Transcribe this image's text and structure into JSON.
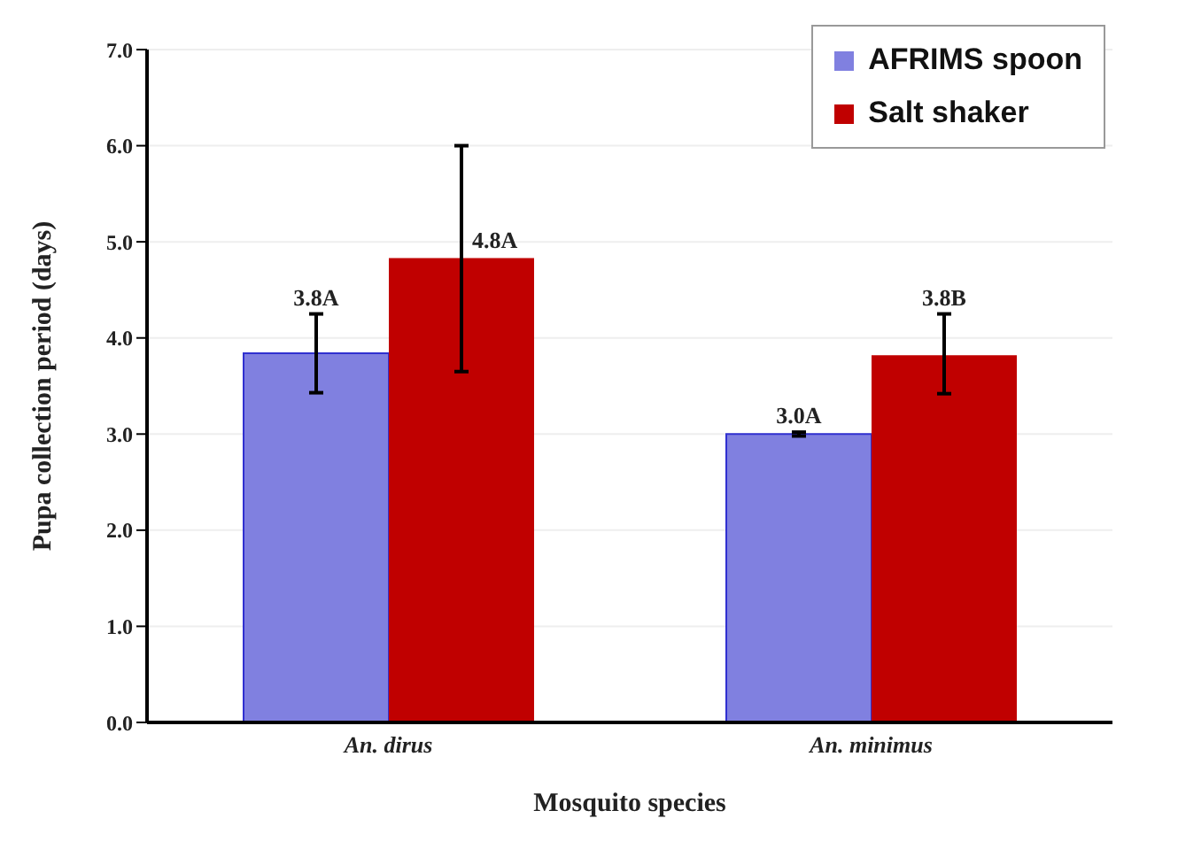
{
  "chart_data": {
    "type": "bar",
    "xlabel": "Mosquito species",
    "ylabel": "Pupa collection period (days)",
    "categories": [
      "An. dirus",
      "An. minimus"
    ],
    "series": [
      {
        "name": "AFRIMS spoon",
        "color": "#8080e0",
        "values": [
          3.84,
          3.0
        ],
        "errors": [
          [
            3.43,
            4.25
          ],
          [
            2.98,
            3.02
          ]
        ],
        "value_labels": [
          "3.8A",
          "3.0A"
        ]
      },
      {
        "name": "Salt shaker",
        "color": "#c00000",
        "values": [
          4.83,
          3.82
        ],
        "errors": [
          [
            3.65,
            6.0
          ],
          [
            3.42,
            4.25
          ]
        ],
        "value_labels": [
          "4.8A",
          "3.8B"
        ]
      }
    ],
    "ylim": [
      0,
      7
    ],
    "yticks": [
      {
        "value": 0,
        "label": "0.0"
      },
      {
        "value": 1,
        "label": "1.0"
      },
      {
        "value": 2,
        "label": "2.0"
      },
      {
        "value": 3,
        "label": "3.0"
      },
      {
        "value": 4,
        "label": "4.0"
      },
      {
        "value": 5,
        "label": "5.0"
      },
      {
        "value": 6,
        "label": "6.0"
      },
      {
        "value": 7,
        "label": "7.0"
      }
    ],
    "grid": "y",
    "legend": "top right"
  }
}
